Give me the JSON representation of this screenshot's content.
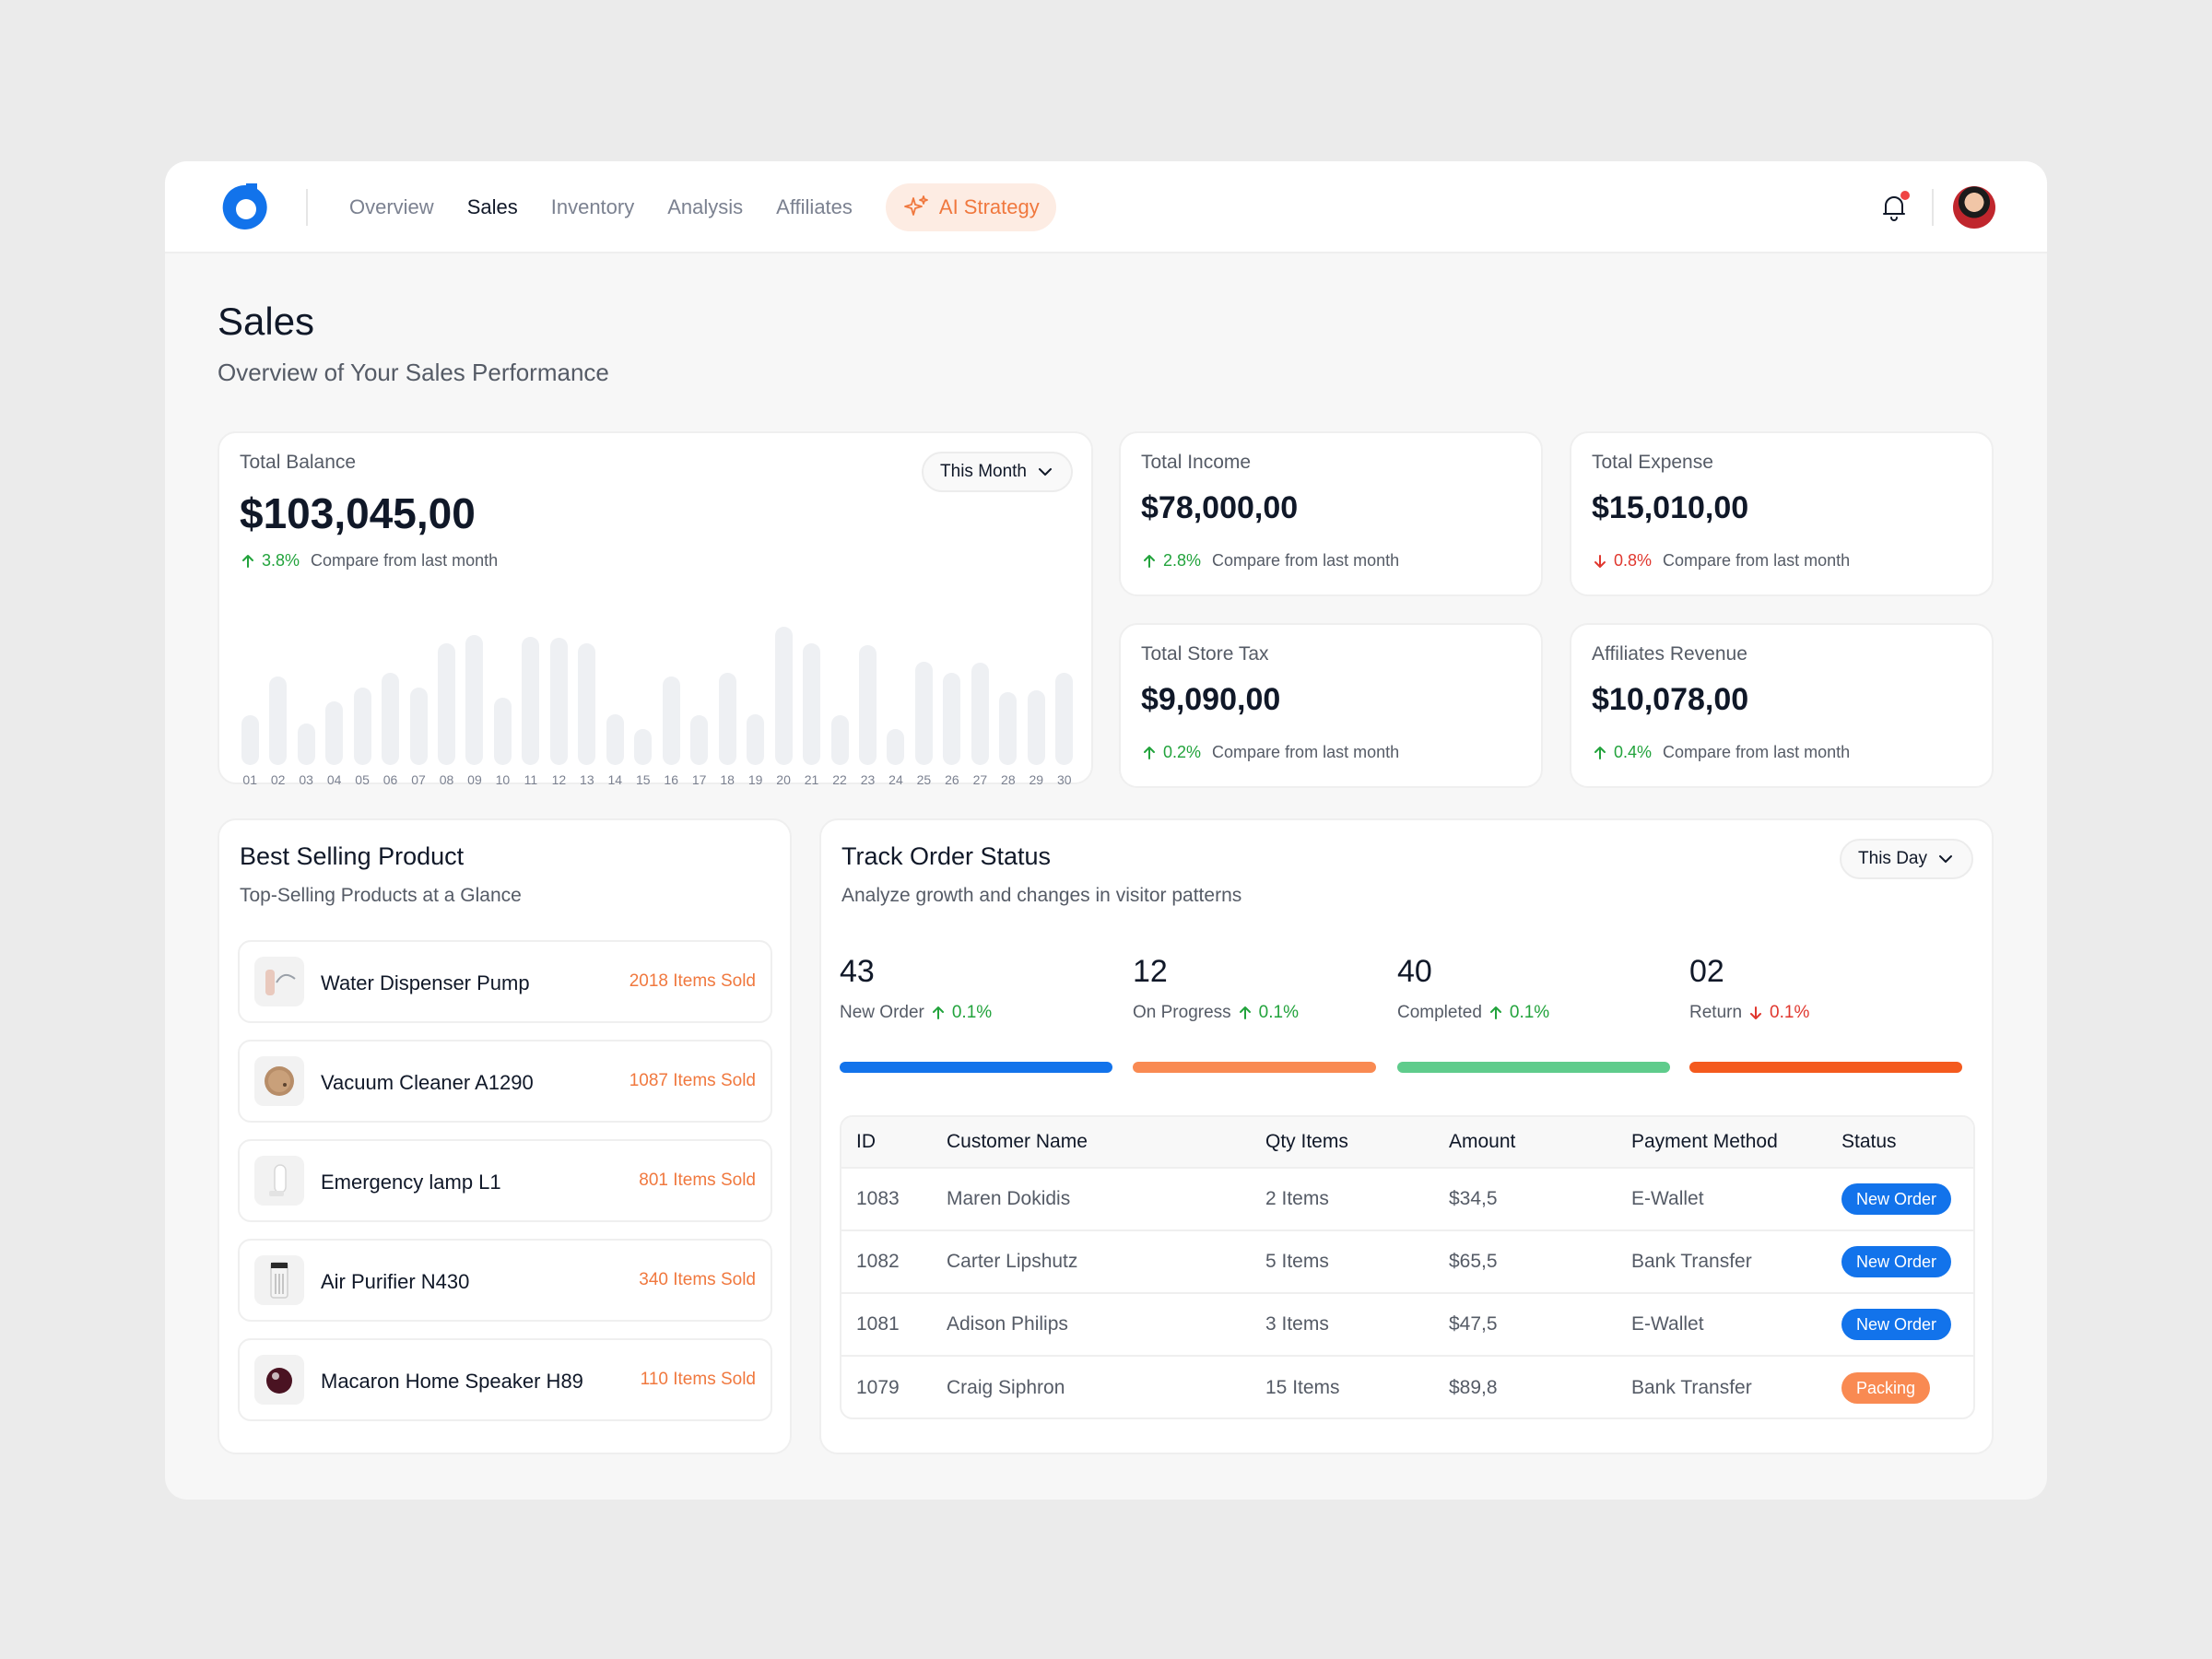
{
  "nav": {
    "items": [
      {
        "label": "Overview",
        "active": false
      },
      {
        "label": "Sales",
        "active": true
      },
      {
        "label": "Inventory",
        "active": false
      },
      {
        "label": "Analysis",
        "active": false
      },
      {
        "label": "Affiliates",
        "active": false
      }
    ],
    "ai_strategy_label": "AI Strategy",
    "ai_icon": "sparkle-icon",
    "bell_icon": "bell-icon",
    "accent_color": "#f0783e"
  },
  "header": {
    "title": "Sales",
    "subtitle": "Overview of Your Sales Performance"
  },
  "balance": {
    "label": "Total Balance",
    "value": "$103,045,00",
    "delta": "3.8%",
    "direction": "up",
    "compare": "Compare from last month",
    "period": "This Month"
  },
  "chart_data": {
    "type": "bar",
    "categories": [
      "01",
      "02",
      "03",
      "04",
      "05",
      "06",
      "07",
      "08",
      "09",
      "10",
      "11",
      "12",
      "13",
      "14",
      "15",
      "16",
      "17",
      "18",
      "19",
      "20",
      "21",
      "22",
      "23",
      "24",
      "25",
      "26",
      "27",
      "28",
      "29",
      "30"
    ],
    "values": [
      36,
      64,
      30,
      46,
      56,
      67,
      56,
      88,
      94,
      49,
      93,
      92,
      88,
      37,
      26,
      64,
      36,
      67,
      37,
      100,
      88,
      36,
      87,
      26,
      75,
      67,
      74,
      53,
      54,
      67
    ],
    "ylim": [
      0,
      100
    ],
    "grid": false
  },
  "stats": [
    {
      "label": "Total Income",
      "value": "$78,000,00",
      "delta": "2.8%",
      "direction": "up",
      "compare": "Compare from last month"
    },
    {
      "label": "Total Expense",
      "value": "$15,010,00",
      "delta": "0.8%",
      "direction": "down",
      "compare": "Compare from last month"
    },
    {
      "label": "Total Store Tax",
      "value": "$9,090,00",
      "delta": "0.2%",
      "direction": "up",
      "compare": "Compare from last month"
    },
    {
      "label": "Affiliates Revenue",
      "value": "$10,078,00",
      "delta": "0.4%",
      "direction": "up",
      "compare": "Compare from last month"
    }
  ],
  "best_selling": {
    "title": "Best Selling Product",
    "subtitle": "Top-Selling Products at a Glance",
    "products": [
      {
        "name": "Water Dispenser Pump",
        "sold": "2018 Items Sold",
        "icon": "water-pump-icon"
      },
      {
        "name": "Vacuum Cleaner A1290",
        "sold": "1087 Items Sold",
        "icon": "robot-vacuum-icon"
      },
      {
        "name": "Emergency lamp L1",
        "sold": "801 Items Sold",
        "icon": "lamp-icon"
      },
      {
        "name": "Air Purifier N430",
        "sold": "340 Items Sold",
        "icon": "air-purifier-icon"
      },
      {
        "name": "Macaron Home Speaker H89",
        "sold": "110 Items Sold",
        "icon": "speaker-icon"
      }
    ]
  },
  "orders": {
    "title": "Track Order Status",
    "subtitle": "Analyze growth and changes in visitor patterns",
    "period": "This Day",
    "statuses": [
      {
        "count": "43",
        "label": "New Order",
        "delta": "0.1%",
        "direction": "up",
        "color": "#1273eb"
      },
      {
        "count": "12",
        "label": "On Progress",
        "delta": "0.1%",
        "direction": "up",
        "color": "#f98a52"
      },
      {
        "count": "40",
        "label": "Completed",
        "delta": "0.1%",
        "direction": "up",
        "color": "#5fcc8c"
      },
      {
        "count": "02",
        "label": "Return",
        "delta": "0.1%",
        "direction": "down",
        "color": "#f45a1e"
      }
    ],
    "columns": [
      "ID",
      "Customer Name",
      "Qty Items",
      "Amount",
      "Payment Method",
      "Status"
    ],
    "rows": [
      {
        "id": "1083",
        "customer": "Maren Dokidis",
        "qty": "2 Items",
        "amount": "$34,5",
        "payment": "E-Wallet",
        "status": "New Order",
        "status_color": "#1273eb"
      },
      {
        "id": "1082",
        "customer": "Carter Lipshutz",
        "qty": "5 Items",
        "amount": "$65,5",
        "payment": "Bank Transfer",
        "status": "New Order",
        "status_color": "#1273eb"
      },
      {
        "id": "1081",
        "customer": "Adison Philips",
        "qty": "3 Items",
        "amount": "$47,5",
        "payment": "E-Wallet",
        "status": "New Order",
        "status_color": "#1273eb"
      },
      {
        "id": "1079",
        "customer": "Craig Siphron",
        "qty": "15 Items",
        "amount": "$89,8",
        "payment": "Bank Transfer",
        "status": "Packing",
        "status_color": "#f98a52"
      }
    ]
  }
}
